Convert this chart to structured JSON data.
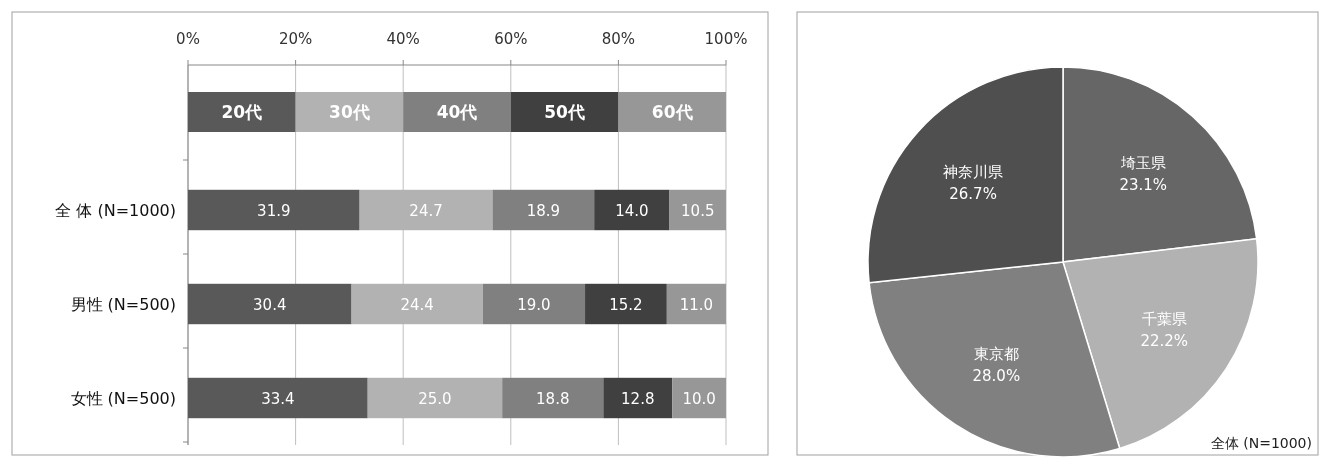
{
  "chart_data": [
    {
      "type": "bar",
      "orientation": "horizontal",
      "stacked": true,
      "categories": [
        "全 体 (N=1000)",
        "男性 (N=500)",
        "女性 (N=500)"
      ],
      "series": [
        {
          "name": "20代",
          "color": "#595959",
          "values": [
            31.9,
            30.4,
            33.4
          ],
          "value_labels": [
            "31.9",
            "30.4",
            "33.4"
          ]
        },
        {
          "name": "30代",
          "color": "#b2b2b2",
          "values": [
            24.7,
            24.4,
            25.0
          ],
          "value_labels": [
            "24.7",
            "24.4",
            "25.0"
          ]
        },
        {
          "name": "40代",
          "color": "#808080",
          "values": [
            18.9,
            19.0,
            18.8
          ],
          "value_labels": [
            "18.9",
            "19.0",
            "18.8"
          ]
        },
        {
          "name": "50代",
          "color": "#404040",
          "values": [
            14.0,
            15.2,
            12.8
          ],
          "value_labels": [
            "14.0",
            "15.2",
            "12.8"
          ]
        },
        {
          "name": "60代",
          "color": "#979797",
          "values": [
            10.5,
            11.0,
            10.0
          ],
          "value_labels": [
            "10.5",
            "11.0",
            "10.0"
          ]
        }
      ],
      "xlim": [
        0,
        100
      ],
      "xticks": [
        {
          "value": 0,
          "label": "0%"
        },
        {
          "value": 20,
          "label": "20%"
        },
        {
          "value": 40,
          "label": "40%"
        },
        {
          "value": 60,
          "label": "60%"
        },
        {
          "value": 80,
          "label": "80%"
        },
        {
          "value": 100,
          "label": "100%"
        }
      ],
      "grid": "x",
      "legend": "top"
    },
    {
      "type": "pie",
      "categories": [
        "埼玉県",
        "千葉県",
        "東京都",
        "神奈川県"
      ],
      "values": [
        23.1,
        22.2,
        28.0,
        26.7
      ],
      "colors": [
        "#666666",
        "#b2b2b2",
        "#808080",
        "#4f4f4f"
      ],
      "value_labels": [
        "23.1%",
        "22.2%",
        "28.0%",
        "26.7%"
      ],
      "annotations": [
        "全体 (N=1000)"
      ]
    }
  ]
}
